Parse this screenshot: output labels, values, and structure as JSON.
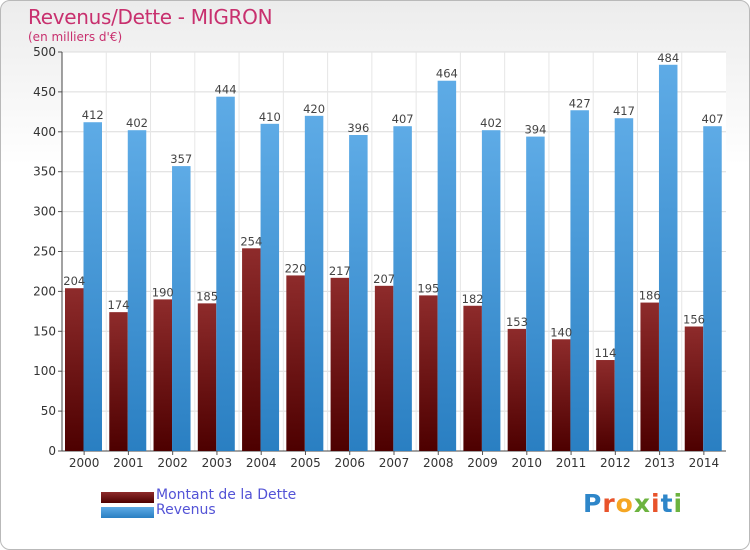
{
  "header": {
    "title": "Revenus/Dette - MIGRON",
    "subtitle": "(en milliers d'€)"
  },
  "legend": [
    {
      "label": "Montant de la Dette",
      "color": "#7a1414"
    },
    {
      "label": "Revenus",
      "color": "#3a96d6"
    }
  ],
  "logo": {
    "text": "Proxiti",
    "letters": [
      {
        "ch": "P",
        "color": "#2e86c9"
      },
      {
        "ch": "r",
        "color": "#e8532b"
      },
      {
        "ch": "o",
        "color": "#f5a623"
      },
      {
        "ch": "x",
        "color": "#6cb33f"
      },
      {
        "ch": "i",
        "color": "#e8532b"
      },
      {
        "ch": "t",
        "color": "#2e86c9"
      },
      {
        "ch": "i",
        "color": "#6cb33f"
      }
    ]
  },
  "chart_data": {
    "type": "bar",
    "categories": [
      "2000",
      "2001",
      "2002",
      "2003",
      "2004",
      "2005",
      "2006",
      "2007",
      "2008",
      "2009",
      "2010",
      "2011",
      "2012",
      "2013",
      "2014"
    ],
    "series": [
      {
        "name": "Montant de la Dette",
        "color": "#7a1414",
        "values": [
          204,
          174,
          190,
          185,
          254,
          220,
          217,
          207,
          195,
          182,
          153,
          140,
          114,
          186,
          156
        ]
      },
      {
        "name": "Revenus",
        "color": "#3a96d6",
        "values": [
          412,
          402,
          357,
          444,
          410,
          420,
          396,
          407,
          464,
          402,
          394,
          427,
          417,
          484,
          407
        ]
      }
    ],
    "ylim": [
      0,
      500
    ],
    "yticks": [
      0,
      50,
      100,
      150,
      200,
      250,
      300,
      350,
      400,
      450,
      500
    ],
    "grid": true,
    "legend_position": "bottom-left"
  }
}
